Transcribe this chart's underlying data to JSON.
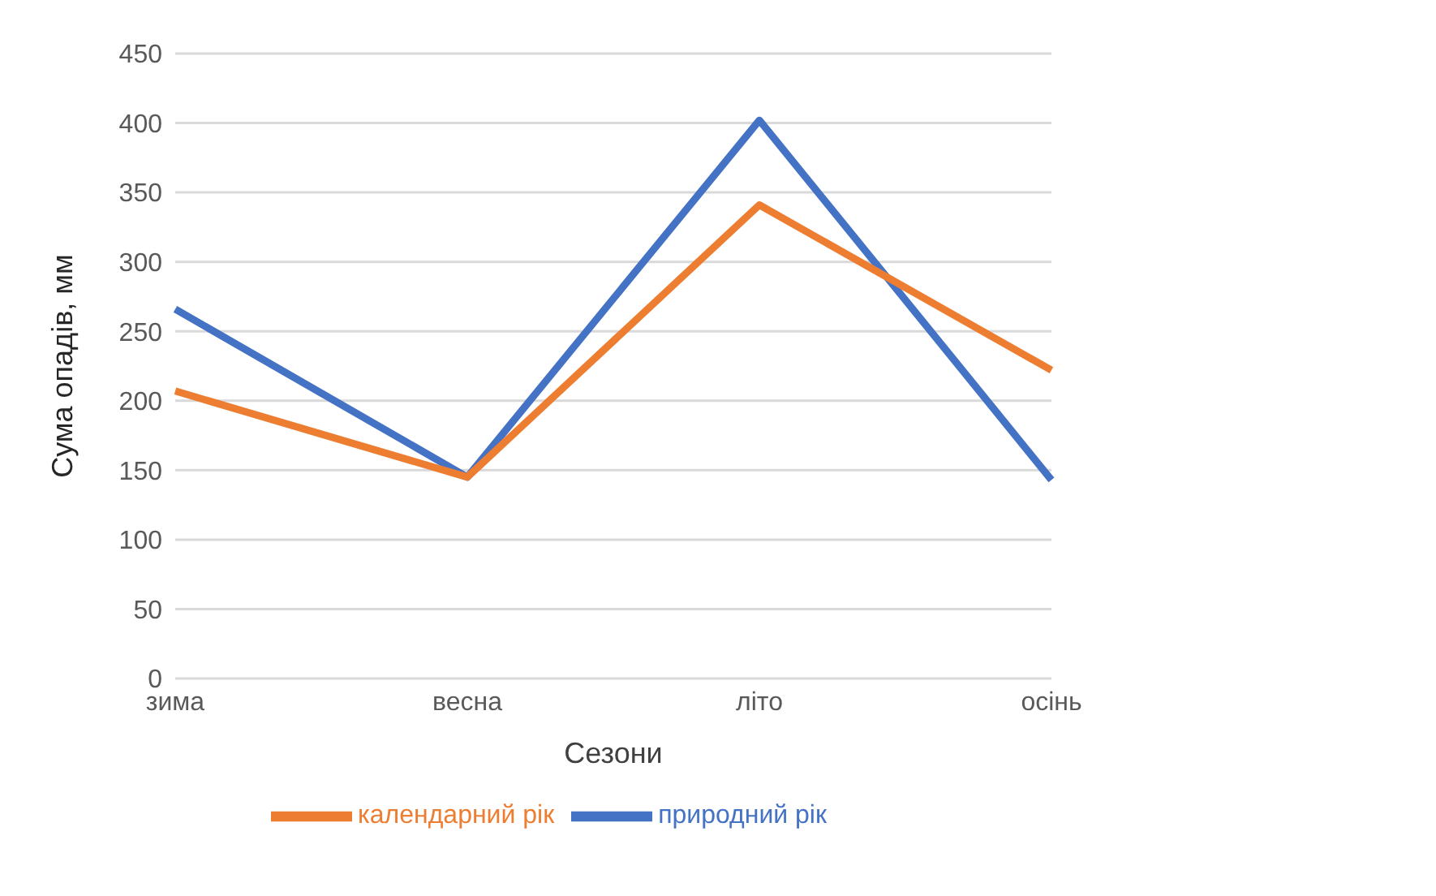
{
  "chart_data": {
    "type": "line",
    "xlabel": "Сезони",
    "ylabel": "Сума опадів, мм",
    "categories": [
      "зима",
      "весна",
      "літо",
      "осінь"
    ],
    "series": [
      {
        "name": "природний рік",
        "color": "#4472c4",
        "values": [
          266,
          145,
          402,
          143
        ]
      },
      {
        "name": "календарний рік",
        "color": "#ed7d31",
        "values": [
          207,
          145,
          341,
          222
        ]
      }
    ],
    "ylim": [
      0,
      450
    ],
    "yticks": [
      0,
      50,
      100,
      150,
      200,
      250,
      300,
      350,
      400,
      450
    ],
    "grid": "y",
    "legend": "bottom",
    "marker": "none",
    "line_style": "solid"
  }
}
